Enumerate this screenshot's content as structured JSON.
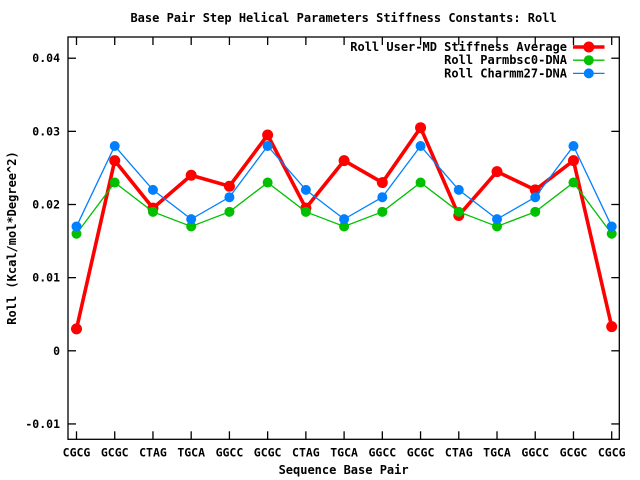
{
  "colors": {
    "background": "#ffffff",
    "axis": "#000000",
    "text": "#000000",
    "series_red": "#ff0000",
    "series_green": "#00c000",
    "series_blue": "#0080ff"
  },
  "chart_data": {
    "type": "line",
    "title": "Base Pair Step Helical Parameters Stiffness Constants: Roll",
    "xlabel": "Sequence Base Pair",
    "ylabel": "Roll (Kcal/mol*Degree^2)",
    "categories": [
      "CGCG",
      "GCGC",
      "CTAG",
      "TGCA",
      "GGCC",
      "GCGC",
      "CTAG",
      "TGCA",
      "GGCC",
      "GCGC",
      "CTAG",
      "TGCA",
      "GGCC",
      "GCGC",
      "CGCG"
    ],
    "yticks": {
      "values": [
        0.04,
        0.03,
        0.02,
        0.01,
        0,
        -0.01
      ],
      "labels": [
        "0.04",
        "0.03",
        "0.02",
        "0.01",
        "0",
        "-0.01"
      ]
    },
    "ylim": [
      -0.0121,
      0.0429
    ],
    "grid": false,
    "legend_position": "top-right-inside",
    "series": [
      {
        "name": "Roll User-MD Stiffness Average",
        "color": "#ff0000",
        "line_width": 3.6,
        "marker_radius": 5.5,
        "values": [
          0.003,
          0.026,
          0.0195,
          0.024,
          0.0225,
          0.0295,
          0.0195,
          0.026,
          0.023,
          0.0305,
          0.0185,
          0.0245,
          0.022,
          0.026,
          0.0033
        ]
      },
      {
        "name": "Roll Parmbsc0-DNA",
        "color": "#00c000",
        "line_width": 1.3,
        "marker_radius": 5,
        "values": [
          0.016,
          0.023,
          0.019,
          0.017,
          0.019,
          0.023,
          0.019,
          0.017,
          0.019,
          0.023,
          0.019,
          0.017,
          0.019,
          0.023,
          0.016
        ]
      },
      {
        "name": "Roll Charmm27-DNA",
        "color": "#0080ff",
        "line_width": 1.3,
        "marker_radius": 5,
        "values": [
          0.017,
          0.028,
          0.022,
          0.018,
          0.021,
          0.028,
          0.022,
          0.018,
          0.021,
          0.028,
          0.022,
          0.018,
          0.021,
          0.028,
          0.017
        ]
      }
    ]
  }
}
